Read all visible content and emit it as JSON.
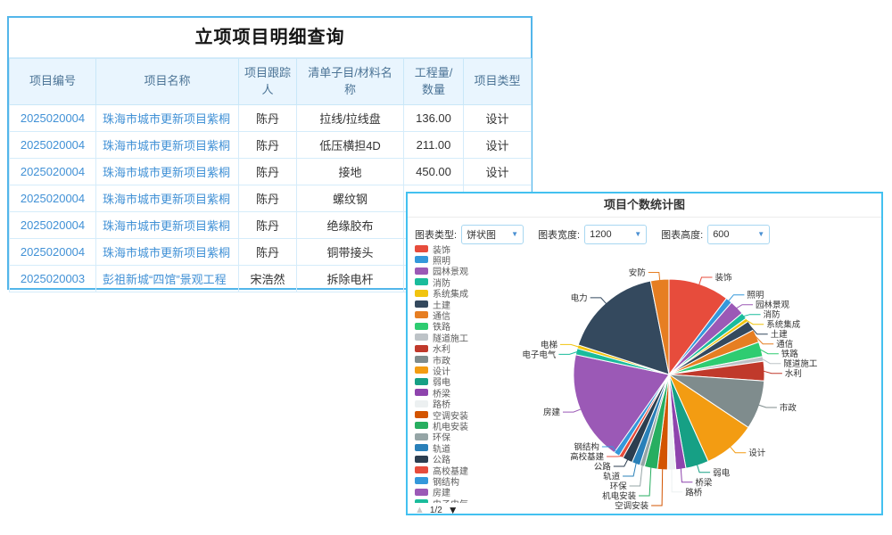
{
  "table_panel": {
    "title": "立项项目明细查询",
    "columns": [
      "项目编号",
      "项目名称",
      "项目跟踪人",
      "清单子目/材料名称",
      "工程量/数量",
      "项目类型"
    ],
    "rows": [
      {
        "code": "2025020004",
        "name": "珠海市城市更新项目紫桐",
        "tracker": "陈丹",
        "item": "拉线/拉线盘",
        "qty": "136.00",
        "type": "设计"
      },
      {
        "code": "2025020004",
        "name": "珠海市城市更新项目紫桐",
        "tracker": "陈丹",
        "item": "低压横担4D",
        "qty": "211.00",
        "type": "设计"
      },
      {
        "code": "2025020004",
        "name": "珠海市城市更新项目紫桐",
        "tracker": "陈丹",
        "item": "接地",
        "qty": "450.00",
        "type": "设计"
      },
      {
        "code": "2025020004",
        "name": "珠海市城市更新项目紫桐",
        "tracker": "陈丹",
        "item": "螺纹钢",
        "qty": "12.00",
        "type": "设计"
      },
      {
        "code": "2025020004",
        "name": "珠海市城市更新项目紫桐",
        "tracker": "陈丹",
        "item": "绝缘胶布",
        "qty": "",
        "type": ""
      },
      {
        "code": "2025020004",
        "name": "珠海市城市更新项目紫桐",
        "tracker": "陈丹",
        "item": "铜带接头",
        "qty": "",
        "type": ""
      },
      {
        "code": "2025020003",
        "name": "彭祖新城“四馆”景观工程",
        "tracker": "宋浩然",
        "item": "拆除电杆",
        "qty": "",
        "type": ""
      }
    ]
  },
  "chart_panel": {
    "title": "项目个数统计图",
    "controls": [
      {
        "label": "图表类型:",
        "value": "饼状图",
        "caret": "▼"
      },
      {
        "label": "图表宽度:",
        "value": "1200",
        "caret": "▼"
      },
      {
        "label": "图表高度:",
        "value": "600",
        "caret": "▼"
      }
    ],
    "legend_pager": {
      "up_icon": "▲",
      "page": "1/2",
      "down_icon": "▼"
    }
  },
  "chart_data": {
    "type": "pie",
    "title": "项目个数统计图",
    "legend_position": "left",
    "legend_page": "1/2",
    "values_note": "values are estimated percentages read from slice angles; no numeric labels are shown in the screenshot",
    "categories": [
      "装饰",
      "照明",
      "园林景观",
      "消防",
      "系统集成",
      "土建",
      "通信",
      "铁路",
      "隧道施工",
      "水利",
      "市政",
      "设计",
      "弱电",
      "桥梁",
      "路桥",
      "空调安装",
      "机电安装",
      "环保",
      "轨道",
      "公路",
      "高校基建",
      "钢结构",
      "房建",
      "电子电气",
      "电梯",
      "电力",
      "安防"
    ],
    "values": [
      10.3,
      1.1,
      2.5,
      1.1,
      0.6,
      1.7,
      2.2,
      2.5,
      0.8,
      3.3,
      8.3,
      8.9,
      3.9,
      1.7,
      1.4,
      1.7,
      2.2,
      0.8,
      1.4,
      1.7,
      0.7,
      1.0,
      18.6,
      1.1,
      0.6,
      16.9,
      3.1
    ],
    "palette": [
      "#e74c3c",
      "#3498db",
      "#9b59b6",
      "#1abc9c",
      "#f1c40f",
      "#34495e",
      "#e67e22",
      "#2ecc71",
      "#bdc3c7",
      "#c0392b",
      "#7f8c8d",
      "#f39c12",
      "#16a085",
      "#8e44ad",
      "#ecf0f1",
      "#d35400",
      "#27ae60",
      "#95a5a6",
      "#2980b9",
      "#2c3e50"
    ]
  },
  "colors": {
    "table_border": "#53b6ea",
    "table_grid": "#d5ecfa",
    "table_header_bg": "#e9f5fe",
    "table_header_text": "#4c7496",
    "link_text": "#4191d6",
    "chart_panel_border": "#43c1f0",
    "select_border": "#a8d7f1",
    "caret_blue": "#4a90d2"
  }
}
